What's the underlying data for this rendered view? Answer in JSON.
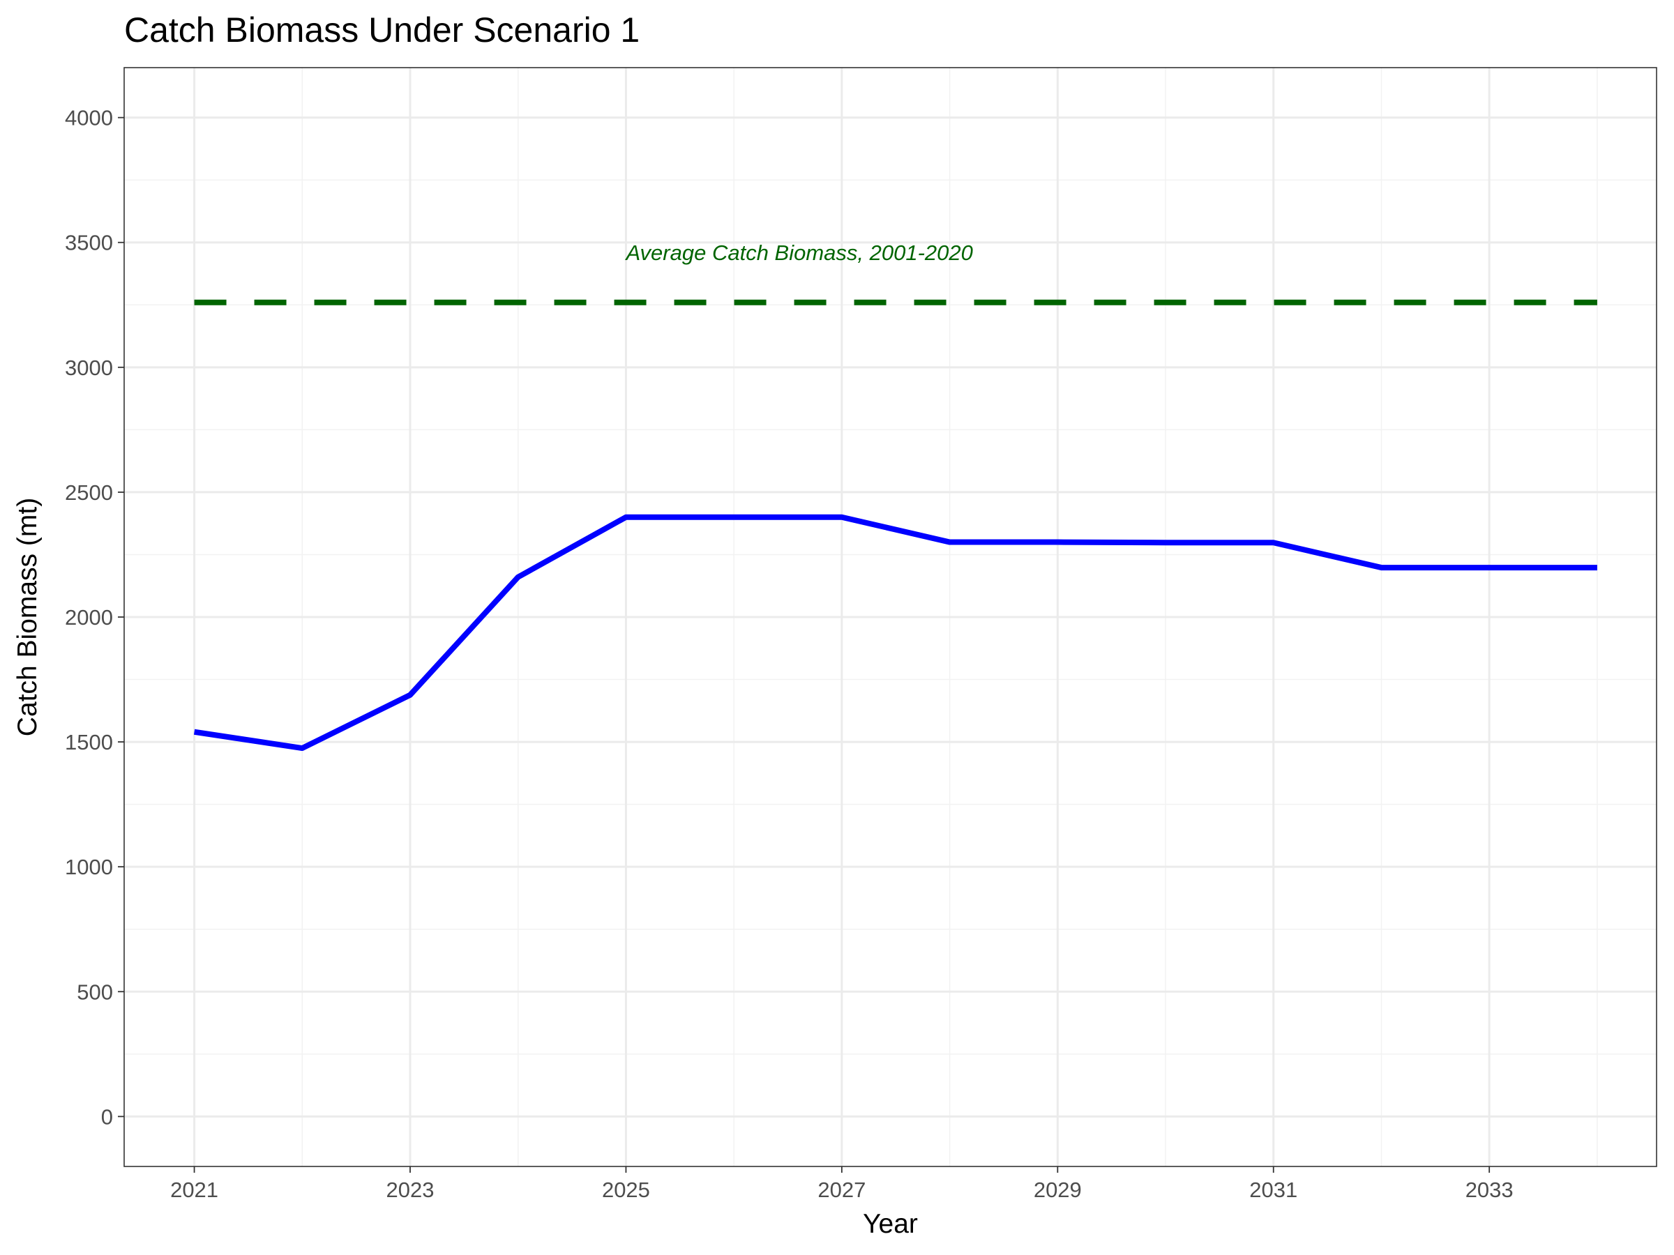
{
  "chart_data": {
    "type": "line",
    "title": "Catch Biomass Under Scenario 1",
    "xlabel": "Year",
    "ylabel": "Catch Biomass (mt)",
    "xlim": [
      2020.35,
      2034.55
    ],
    "ylim": [
      -200,
      4200
    ],
    "x_ticks": [
      2021,
      2023,
      2025,
      2027,
      2029,
      2031,
      2033
    ],
    "y_ticks": [
      0,
      500,
      1000,
      1500,
      2000,
      2500,
      3000,
      3500,
      4000
    ],
    "grid": true,
    "series": [
      {
        "color": "#0000ff",
        "style": "solid",
        "x": [
          2021,
          2022,
          2023,
          2024,
          2025,
          2026,
          2027,
          2028,
          2029,
          2030,
          2031,
          2032,
          2033,
          2034
        ],
        "values": [
          1540,
          1475,
          1688,
          2160,
          2400,
          2400,
          2400,
          2300,
          2300,
          2298,
          2298,
          2198,
          2198,
          2198
        ]
      },
      {
        "color": "#006400",
        "style": "dashed",
        "x": [
          2021,
          2034
        ],
        "values": [
          3260,
          3260
        ]
      }
    ],
    "annotations": [
      {
        "text": "Average Catch Biomass, 2001-2020",
        "x": 2025,
        "y": 3430,
        "color": "#006400"
      }
    ]
  }
}
